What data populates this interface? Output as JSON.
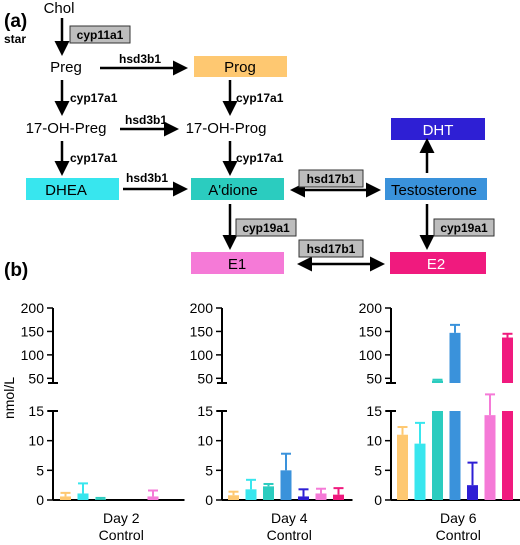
{
  "panels": {
    "a": "(a)",
    "b": "(b)"
  },
  "pathway": {
    "nodes": [
      {
        "id": "chol",
        "label": "Chol",
        "box": false
      },
      {
        "id": "preg",
        "label": "Preg",
        "box": false
      },
      {
        "id": "prog",
        "label": "Prog",
        "box": true,
        "color": "#FEC871"
      },
      {
        "id": "ohpreg",
        "label": "17-OH-Preg",
        "box": false
      },
      {
        "id": "ohprog",
        "label": "17-OH-Prog",
        "box": false
      },
      {
        "id": "dht",
        "label": "DHT",
        "box": true,
        "color": "#2E1FD4",
        "textcolor": "#ffffff"
      },
      {
        "id": "dhea",
        "label": "DHEA",
        "box": true,
        "color": "#38E6EE"
      },
      {
        "id": "adione",
        "label": "A'dione",
        "box": true,
        "color": "#2BCCBF"
      },
      {
        "id": "testo",
        "label": "Testosterone",
        "box": true,
        "color": "#3A92DB"
      },
      {
        "id": "e1",
        "label": "E1",
        "box": true,
        "color": "#F57AD7"
      },
      {
        "id": "e2",
        "label": "E2",
        "box": true,
        "color": "#F01A7E",
        "textcolor": "#ffffff"
      }
    ],
    "enzymes": {
      "star": "star",
      "cyp11a1": "cyp11a1",
      "hsd3b1_1": "hsd3b1",
      "cyp17a1_1": "cyp17a1",
      "cyp17a1_2": "cyp17a1",
      "hsd3b1_2": "hsd3b1",
      "cyp17a1_3": "cyp17a1",
      "cyp17a1_4": "cyp17a1",
      "hsd3b1_3": "hsd3b1",
      "hsd17b1_1": "hsd17b1",
      "cyp19a1_1": "cyp19a1",
      "cyp19a1_2": "cyp19a1",
      "hsd17b1_2": "hsd17b1"
    }
  },
  "chart_data": {
    "type": "bar",
    "ylabel": "nmol/L",
    "yticks_lower": [
      0,
      5,
      10,
      15
    ],
    "yticks_upper": [
      50,
      100,
      150,
      200
    ],
    "axis_break": {
      "lower_max": 15,
      "upper_min": 40,
      "upper_max": 200
    },
    "series_colors": [
      "#FEC871",
      "#38E6EE",
      "#2BCCBF",
      "#3A92DB",
      "#2E1FD4",
      "#F57AD7",
      "#F01A7E"
    ],
    "series_labels": [
      "Prog",
      "DHEA",
      "A'dione",
      "Testosterone",
      "DHT",
      "E1",
      "E2"
    ],
    "groups": [
      {
        "label": "Day 2",
        "sublabel": "Control",
        "values": [
          0.6,
          1.1,
          0.15,
          0,
          0,
          0.6,
          0
        ],
        "errors": [
          0.6,
          1.7,
          0.2,
          0,
          0,
          1.0,
          0
        ]
      },
      {
        "label": "Day 4",
        "sublabel": "Control",
        "values": [
          0.8,
          1.8,
          2.3,
          5.0,
          0.6,
          1.1,
          0.9
        ],
        "errors": [
          0.6,
          1.6,
          0.4,
          2.8,
          1.2,
          0.8,
          1.1
        ]
      },
      {
        "label": "Day 6",
        "sublabel": "Control",
        "values": [
          11,
          9.5,
          45,
          147,
          2.5,
          14.3,
          137
        ],
        "errors": [
          1.3,
          3.5,
          2,
          17,
          3.8,
          1.4,
          8
        ]
      }
    ]
  }
}
